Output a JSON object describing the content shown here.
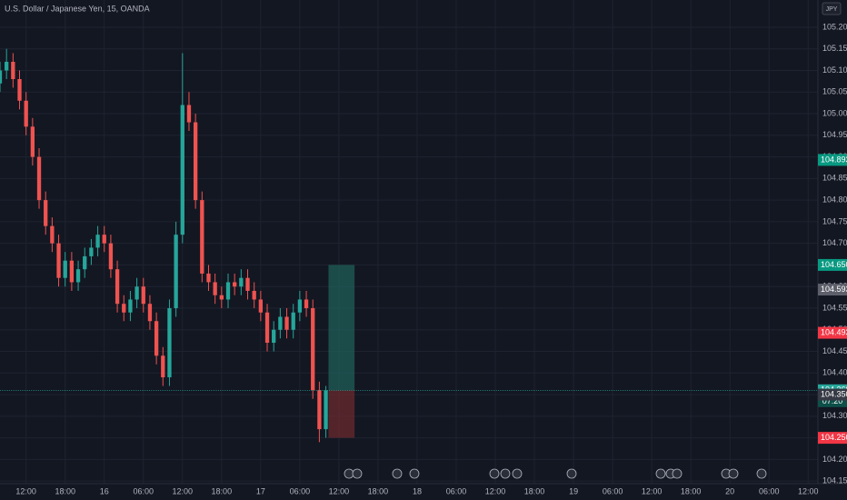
{
  "chart_data": {
    "type": "candlestick",
    "title": "U.S. Dollar / Japanese Yen, 15, OANDA",
    "currency": "JPY",
    "up_color": "#26a69a",
    "down_color": "#ef5350",
    "xlim": [
      -4,
      121.5
    ],
    "ylim": [
      104.144,
      105.263
    ],
    "grid": true,
    "x": [
      -4,
      -3,
      -2,
      -1,
      0,
      1,
      2,
      3,
      4,
      5,
      6,
      7,
      8,
      9,
      10,
      11,
      12,
      13,
      14,
      15,
      16,
      17,
      18,
      19,
      20,
      21,
      22,
      23,
      24,
      25,
      26,
      27,
      28,
      29,
      30,
      31,
      32,
      33,
      34,
      35,
      36,
      37,
      38,
      39,
      40,
      41,
      42,
      43,
      44,
      45,
      46
    ],
    "open": [
      105.07,
      105.1,
      105.12,
      105.08,
      105.03,
      104.97,
      104.9,
      104.8,
      104.74,
      104.7,
      104.62,
      104.66,
      104.61,
      104.64,
      104.67,
      104.69,
      104.72,
      104.7,
      104.64,
      104.56,
      104.54,
      104.57,
      104.6,
      104.56,
      104.52,
      104.44,
      104.39,
      104.55,
      104.72,
      105.02,
      104.98,
      104.8,
      104.63,
      104.61,
      104.58,
      104.57,
      104.61,
      104.6,
      104.62,
      104.59,
      104.57,
      104.54,
      104.47,
      104.5,
      104.53,
      104.5,
      104.54,
      104.57,
      104.55,
      104.36,
      104.27
    ],
    "high": [
      105.12,
      105.15,
      105.14,
      105.1,
      105.05,
      104.99,
      104.92,
      104.82,
      104.76,
      104.72,
      104.68,
      104.68,
      104.66,
      104.69,
      104.71,
      104.74,
      104.74,
      104.72,
      104.66,
      104.58,
      104.59,
      104.62,
      104.62,
      104.58,
      104.54,
      104.46,
      104.57,
      104.75,
      105.14,
      105.05,
      105.0,
      104.82,
      104.65,
      104.63,
      104.6,
      104.63,
      104.63,
      104.64,
      104.64,
      104.61,
      104.59,
      104.56,
      104.52,
      104.55,
      104.55,
      104.56,
      104.59,
      104.59,
      104.57,
      104.38,
      104.37
    ],
    "low": [
      105.05,
      105.08,
      105.06,
      105.01,
      104.95,
      104.88,
      104.78,
      104.72,
      104.68,
      104.6,
      104.6,
      104.59,
      104.59,
      104.62,
      104.65,
      104.67,
      104.68,
      104.62,
      104.54,
      104.52,
      104.52,
      104.55,
      104.54,
      104.5,
      104.42,
      104.37,
      104.37,
      104.53,
      104.7,
      104.96,
      104.78,
      104.61,
      104.59,
      104.56,
      104.55,
      104.55,
      104.58,
      104.58,
      104.57,
      104.55,
      104.52,
      104.45,
      104.45,
      104.48,
      104.48,
      104.48,
      104.52,
      104.53,
      104.34,
      104.24,
      104.25
    ],
    "close": [
      105.1,
      105.12,
      105.08,
      105.03,
      104.97,
      104.9,
      104.8,
      104.74,
      104.7,
      104.62,
      104.66,
      104.61,
      104.64,
      104.67,
      104.69,
      104.72,
      104.7,
      104.64,
      104.56,
      104.54,
      104.57,
      104.6,
      104.56,
      104.52,
      104.44,
      104.39,
      104.55,
      104.72,
      105.02,
      104.98,
      104.8,
      104.63,
      104.61,
      104.58,
      104.57,
      104.61,
      104.6,
      104.62,
      104.59,
      104.57,
      104.54,
      104.47,
      104.5,
      104.53,
      104.5,
      104.54,
      104.57,
      104.55,
      104.36,
      104.27,
      104.36
    ],
    "position": {
      "entry": 104.36,
      "target": 104.65,
      "stop": 104.25,
      "start": 46.4,
      "end": 50.4,
      "profit_color": "#1f5f58",
      "loss_color": "#6b2a2f"
    },
    "yticks": [
      {
        "value": 104.15,
        "label": "104.150"
      },
      {
        "value": 104.2,
        "label": "104.200"
      },
      {
        "value": 104.25,
        "label": "104.250"
      },
      {
        "value": 104.3,
        "label": "104.300"
      },
      {
        "value": 104.35,
        "label": "104.350"
      },
      {
        "value": 104.4,
        "label": "104.400"
      },
      {
        "value": 104.45,
        "label": "104.450"
      },
      {
        "value": 104.5,
        "label": "104.500"
      },
      {
        "value": 104.55,
        "label": "104.550"
      },
      {
        "value": 104.6,
        "label": "104.600"
      },
      {
        "value": 104.65,
        "label": "104.650"
      },
      {
        "value": 104.7,
        "label": "104.700"
      },
      {
        "value": 104.75,
        "label": "104.750"
      },
      {
        "value": 104.8,
        "label": "104.800"
      },
      {
        "value": 104.85,
        "label": "104.850"
      },
      {
        "value": 104.9,
        "label": "104.900"
      },
      {
        "value": 104.95,
        "label": "104.950"
      },
      {
        "value": 105.0,
        "label": "105.000"
      },
      {
        "value": 105.05,
        "label": "105.050"
      },
      {
        "value": 105.1,
        "label": "105.100"
      },
      {
        "value": 105.15,
        "label": "105.150"
      },
      {
        "value": 105.2,
        "label": "105.200"
      }
    ],
    "xticks": [
      {
        "value": 0,
        "label": "12:00"
      },
      {
        "value": 6,
        "label": "18:00"
      },
      {
        "value": 12,
        "label": "16"
      },
      {
        "value": 18,
        "label": "06:00"
      },
      {
        "value": 24,
        "label": "12:00"
      },
      {
        "value": 30,
        "label": "18:00"
      },
      {
        "value": 36,
        "label": "17"
      },
      {
        "value": 42,
        "label": "06:00"
      },
      {
        "value": 48,
        "label": "12:00"
      },
      {
        "value": 54,
        "label": "18:00"
      },
      {
        "value": 60,
        "label": "18"
      },
      {
        "value": 66,
        "label": "06:00"
      },
      {
        "value": 72,
        "label": "12:00"
      },
      {
        "value": 78,
        "label": "18:00"
      },
      {
        "value": 84,
        "label": "19"
      },
      {
        "value": 90,
        "label": "06:00"
      },
      {
        "value": 96,
        "label": "12:00"
      },
      {
        "value": 102,
        "label": "18:00"
      },
      {
        "value": 108,
        "label": "20"
      },
      {
        "value": 114,
        "label": "06:00"
      },
      {
        "value": 120,
        "label": "12:00"
      }
    ],
    "price_labels": [
      {
        "value": 104.893,
        "label": "104.893",
        "color": "#089981"
      },
      {
        "value": 104.65,
        "label": "104.650",
        "color": "#089981"
      },
      {
        "value": 104.593,
        "label": "104.593",
        "color": "#5d606b"
      },
      {
        "value": 104.493,
        "label": "104.493",
        "color": "#f23645"
      },
      {
        "value": 104.36,
        "label": "104.360",
        "color": "#26a69a"
      },
      {
        "value": 104.35,
        "label": "104.350",
        "color": "#363a45"
      },
      {
        "value": 104.25,
        "label": "104.250",
        "color": "#f23645"
      }
    ],
    "countdown": "07:20"
  }
}
